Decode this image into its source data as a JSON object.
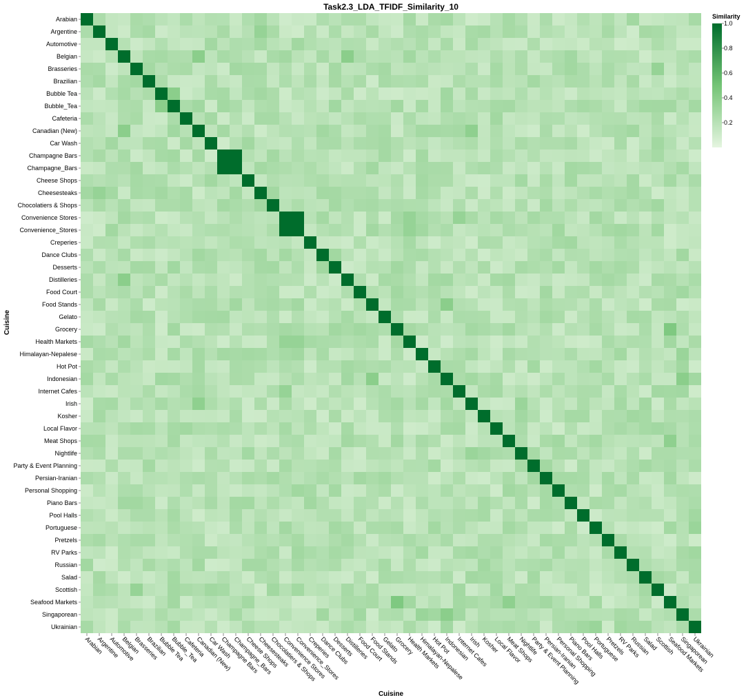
{
  "chart_data": {
    "type": "heatmap",
    "title": "Task2.3_LDA_TFIDF_Similarity_10",
    "xlabel": "Cuisine",
    "ylabel": "Cuisine",
    "categories": [
      "Arabian",
      "Argentine",
      "Automotive",
      "Belgian",
      "Brasseries",
      "Brazilian",
      "Bubble Tea",
      "Bubble_Tea",
      "Cafeteria",
      "Canadian (New)",
      "Car Wash",
      "Champagne Bars",
      "Champagne_Bars",
      "Cheese Shops",
      "Cheesesteaks",
      "Chocolatiers & Shops",
      "Convenience Stores",
      "Convenience_Stores",
      "Creperies",
      "Dance Clubs",
      "Desserts",
      "Distilleries",
      "Food Court",
      "Food Stands",
      "Gelato",
      "Grocery",
      "Health Markets",
      "Himalayan-Nepalese",
      "Hot Pot",
      "Indonesian",
      "Internet Cafes",
      "Irish",
      "Kosher",
      "Local Flavor",
      "Meat Shops",
      "Nightlife",
      "Party & Event Planning",
      "Persian-Iranian",
      "Personal Shopping",
      "Piano Bars",
      "Pool Halls",
      "Portuguese",
      "Pretzels",
      "RV Parks",
      "Russian",
      "Salad",
      "Scottish",
      "Seafood Markets",
      "Singaporean",
      "Ukrainian"
    ],
    "value_range": [
      0,
      1
    ],
    "diagonal_value": 1.0,
    "high_pairs": [
      {
        "a": "Champagne Bars",
        "b": "Champagne_Bars",
        "value": 1.0
      },
      {
        "a": "Convenience Stores",
        "b": "Convenience_Stores",
        "value": 1.0
      },
      {
        "a": "Grocery",
        "b": "Seafood Markets",
        "value": 0.45
      },
      {
        "a": "Belgian",
        "b": "Canadian (New)",
        "value": 0.4
      },
      {
        "a": "Belgian",
        "b": "Distilleries",
        "value": 0.4
      },
      {
        "a": "Food Stands",
        "b": "Indonesian",
        "value": 0.4
      },
      {
        "a": "Indonesian",
        "b": "Singaporean",
        "value": 0.4
      },
      {
        "a": "Canadian (New)",
        "b": "Irish",
        "value": 0.38
      },
      {
        "a": "Meat Shops",
        "b": "Seafood Markets",
        "value": 0.38
      },
      {
        "a": "Argentine",
        "b": "Cheesesteaks",
        "value": 0.35
      },
      {
        "a": "Brasseries",
        "b": "Scottish",
        "value": 0.35
      },
      {
        "a": "Bubble Tea",
        "b": "Bubble_Tea",
        "value": 0.4
      },
      {
        "a": "Health Markets",
        "b": "Convenience Stores",
        "value": 0.35
      },
      {
        "a": "Health Markets",
        "b": "Convenience_Stores",
        "value": 0.35
      },
      {
        "a": "Internet Cafes",
        "b": "Convenience Stores",
        "value": 0.35
      },
      {
        "a": "Nightlife",
        "b": "Irish",
        "value": 0.33
      },
      {
        "a": "Portuguese",
        "b": "Ukrainian",
        "value": 0.33
      },
      {
        "a": "Himalayan-Nepalese",
        "b": "Singaporean",
        "value": 0.33
      }
    ],
    "off_diagonal_typical_range": [
      0.1,
      0.3
    ],
    "legend": {
      "title": "Similarity",
      "position": "top-right",
      "ticks": [
        "0.2",
        "0.4",
        "0.6",
        "0.8",
        "1.0"
      ],
      "tick_values": [
        0.2,
        0.4,
        0.6,
        0.8,
        1.0
      ]
    },
    "colors": {
      "low": "#e5f5e0",
      "mid": "#74c476",
      "high": "#006d2c"
    }
  }
}
